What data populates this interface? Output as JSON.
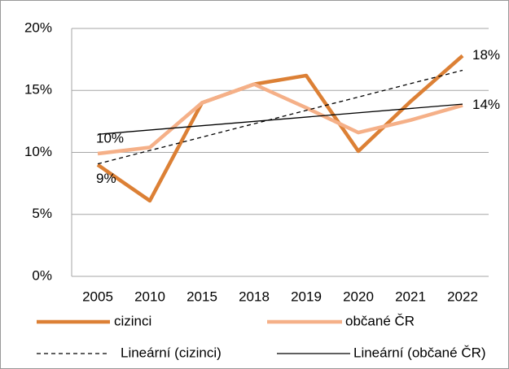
{
  "chart_data": {
    "type": "line",
    "categories": [
      "2005",
      "2010",
      "2015",
      "2018",
      "2019",
      "2020",
      "2021",
      "2022"
    ],
    "series": [
      {
        "name": "cizinci",
        "color": "#dc8035",
        "values": [
          9.0,
          6.1,
          14.0,
          15.5,
          16.2,
          10.1,
          14.1,
          17.8
        ],
        "value_labels": [
          "9%",
          null,
          null,
          null,
          null,
          null,
          null,
          "18%"
        ]
      },
      {
        "name": "občané ČR",
        "color": "#f5b088",
        "values": [
          9.9,
          10.4,
          14.0,
          15.5,
          13.6,
          11.6,
          12.6,
          13.8
        ],
        "value_labels": [
          "10%",
          null,
          null,
          null,
          null,
          null,
          null,
          "14%"
        ]
      }
    ],
    "trendlines": [
      {
        "name": "Lineární (cizinci)",
        "series": 0,
        "color": "#000000",
        "dashed": true
      },
      {
        "name": "Lineární (občané ČR)",
        "series": 1,
        "color": "#000000",
        "dashed": false
      }
    ],
    "ylim": [
      0,
      20
    ],
    "yticks": [
      {
        "value": 0,
        "label": "0%"
      },
      {
        "value": 5,
        "label": "5%"
      },
      {
        "value": 10,
        "label": "10%"
      },
      {
        "value": 15,
        "label": "15%"
      },
      {
        "value": 20,
        "label": "20%"
      }
    ],
    "grid": true
  }
}
